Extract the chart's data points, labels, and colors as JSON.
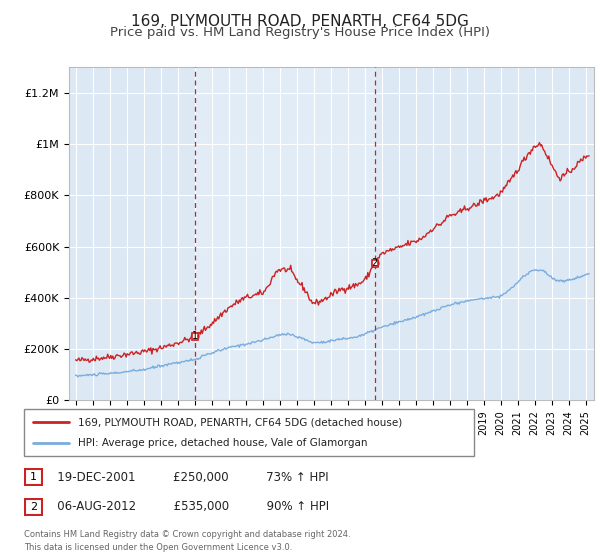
{
  "title": "169, PLYMOUTH ROAD, PENARTH, CF64 5DG",
  "subtitle": "Price paid vs. HM Land Registry's House Price Index (HPI)",
  "title_fontsize": 11,
  "subtitle_fontsize": 9.5,
  "ylabel_ticks": [
    "£0",
    "£200K",
    "£400K",
    "£600K",
    "£800K",
    "£1M",
    "£1.2M"
  ],
  "ytick_values": [
    0,
    200000,
    400000,
    600000,
    800000,
    1000000,
    1200000
  ],
  "ylim": [
    0,
    1300000
  ],
  "xlim_start": 1994.6,
  "xlim_end": 2025.5,
  "plot_bg_color": "#dce9f5",
  "fig_bg_color": "#ffffff",
  "grid_color": "#ffffff",
  "red_line_color": "#cc2222",
  "blue_line_color": "#7aaddd",
  "marker1_date_num": 2002.0,
  "marker1_price": 250000,
  "marker1_label": "1",
  "marker1_date_str": "19-DEC-2001",
  "marker1_price_str": "£250,000",
  "marker1_pct_str": "73% ↑ HPI",
  "marker2_date_num": 2012.6,
  "marker2_price": 535000,
  "marker2_label": "2",
  "marker2_date_str": "06-AUG-2012",
  "marker2_price_str": "£535,000",
  "marker2_pct_str": "90% ↑ HPI",
  "legend_line1": "169, PLYMOUTH ROAD, PENARTH, CF64 5DG (detached house)",
  "legend_line2": "HPI: Average price, detached house, Vale of Glamorgan",
  "footer1": "Contains HM Land Registry data © Crown copyright and database right 2024.",
  "footer2": "This data is licensed under the Open Government Licence v3.0.",
  "red_key_points_x": [
    1995.0,
    1996.0,
    1997.0,
    1998.0,
    1999.0,
    2000.0,
    2001.0,
    2002.0,
    2003.0,
    2004.0,
    2005.0,
    2006.0,
    2007.0,
    2007.5,
    2008.0,
    2008.5,
    2009.0,
    2009.5,
    2010.0,
    2010.5,
    2011.0,
    2011.5,
    2012.0,
    2012.6,
    2013.0,
    2013.5,
    2014.0,
    2014.5,
    2015.0,
    2015.5,
    2016.0,
    2016.5,
    2017.0,
    2017.5,
    2018.0,
    2018.5,
    2019.0,
    2019.5,
    2020.0,
    2020.5,
    2021.0,
    2021.5,
    2022.0,
    2022.3,
    2022.7,
    2023.0,
    2023.5,
    2024.0,
    2024.5,
    2025.0
  ],
  "red_key_points_y": [
    155000,
    162000,
    170000,
    180000,
    190000,
    205000,
    225000,
    250000,
    300000,
    360000,
    400000,
    420000,
    510000,
    510000,
    470000,
    430000,
    380000,
    390000,
    410000,
    430000,
    440000,
    450000,
    470000,
    535000,
    570000,
    585000,
    595000,
    610000,
    620000,
    640000,
    670000,
    690000,
    720000,
    730000,
    750000,
    760000,
    780000,
    790000,
    810000,
    850000,
    900000,
    950000,
    990000,
    1000000,
    960000,
    920000,
    870000,
    890000,
    920000,
    950000
  ],
  "blue_key_points_x": [
    1995.0,
    1996.0,
    1997.0,
    1998.0,
    1999.0,
    2000.0,
    2001.0,
    2002.0,
    2003.0,
    2004.0,
    2005.0,
    2006.0,
    2007.0,
    2007.5,
    2008.0,
    2008.5,
    2009.0,
    2009.5,
    2010.0,
    2010.5,
    2011.0,
    2011.5,
    2012.0,
    2012.6,
    2013.0,
    2013.5,
    2014.0,
    2014.5,
    2015.0,
    2015.5,
    2016.0,
    2016.5,
    2017.0,
    2017.5,
    2018.0,
    2018.5,
    2019.0,
    2019.5,
    2020.0,
    2020.5,
    2021.0,
    2021.5,
    2022.0,
    2022.5,
    2023.0,
    2023.5,
    2024.0,
    2024.5,
    2025.0
  ],
  "blue_key_points_y": [
    95000,
    100000,
    105000,
    112000,
    120000,
    135000,
    148000,
    160000,
    185000,
    205000,
    220000,
    235000,
    255000,
    260000,
    248000,
    238000,
    225000,
    228000,
    232000,
    238000,
    242000,
    248000,
    258000,
    275000,
    285000,
    295000,
    305000,
    315000,
    325000,
    335000,
    348000,
    360000,
    372000,
    380000,
    388000,
    393000,
    398000,
    402000,
    408000,
    430000,
    460000,
    490000,
    510000,
    505000,
    480000,
    465000,
    470000,
    478000,
    490000
  ]
}
